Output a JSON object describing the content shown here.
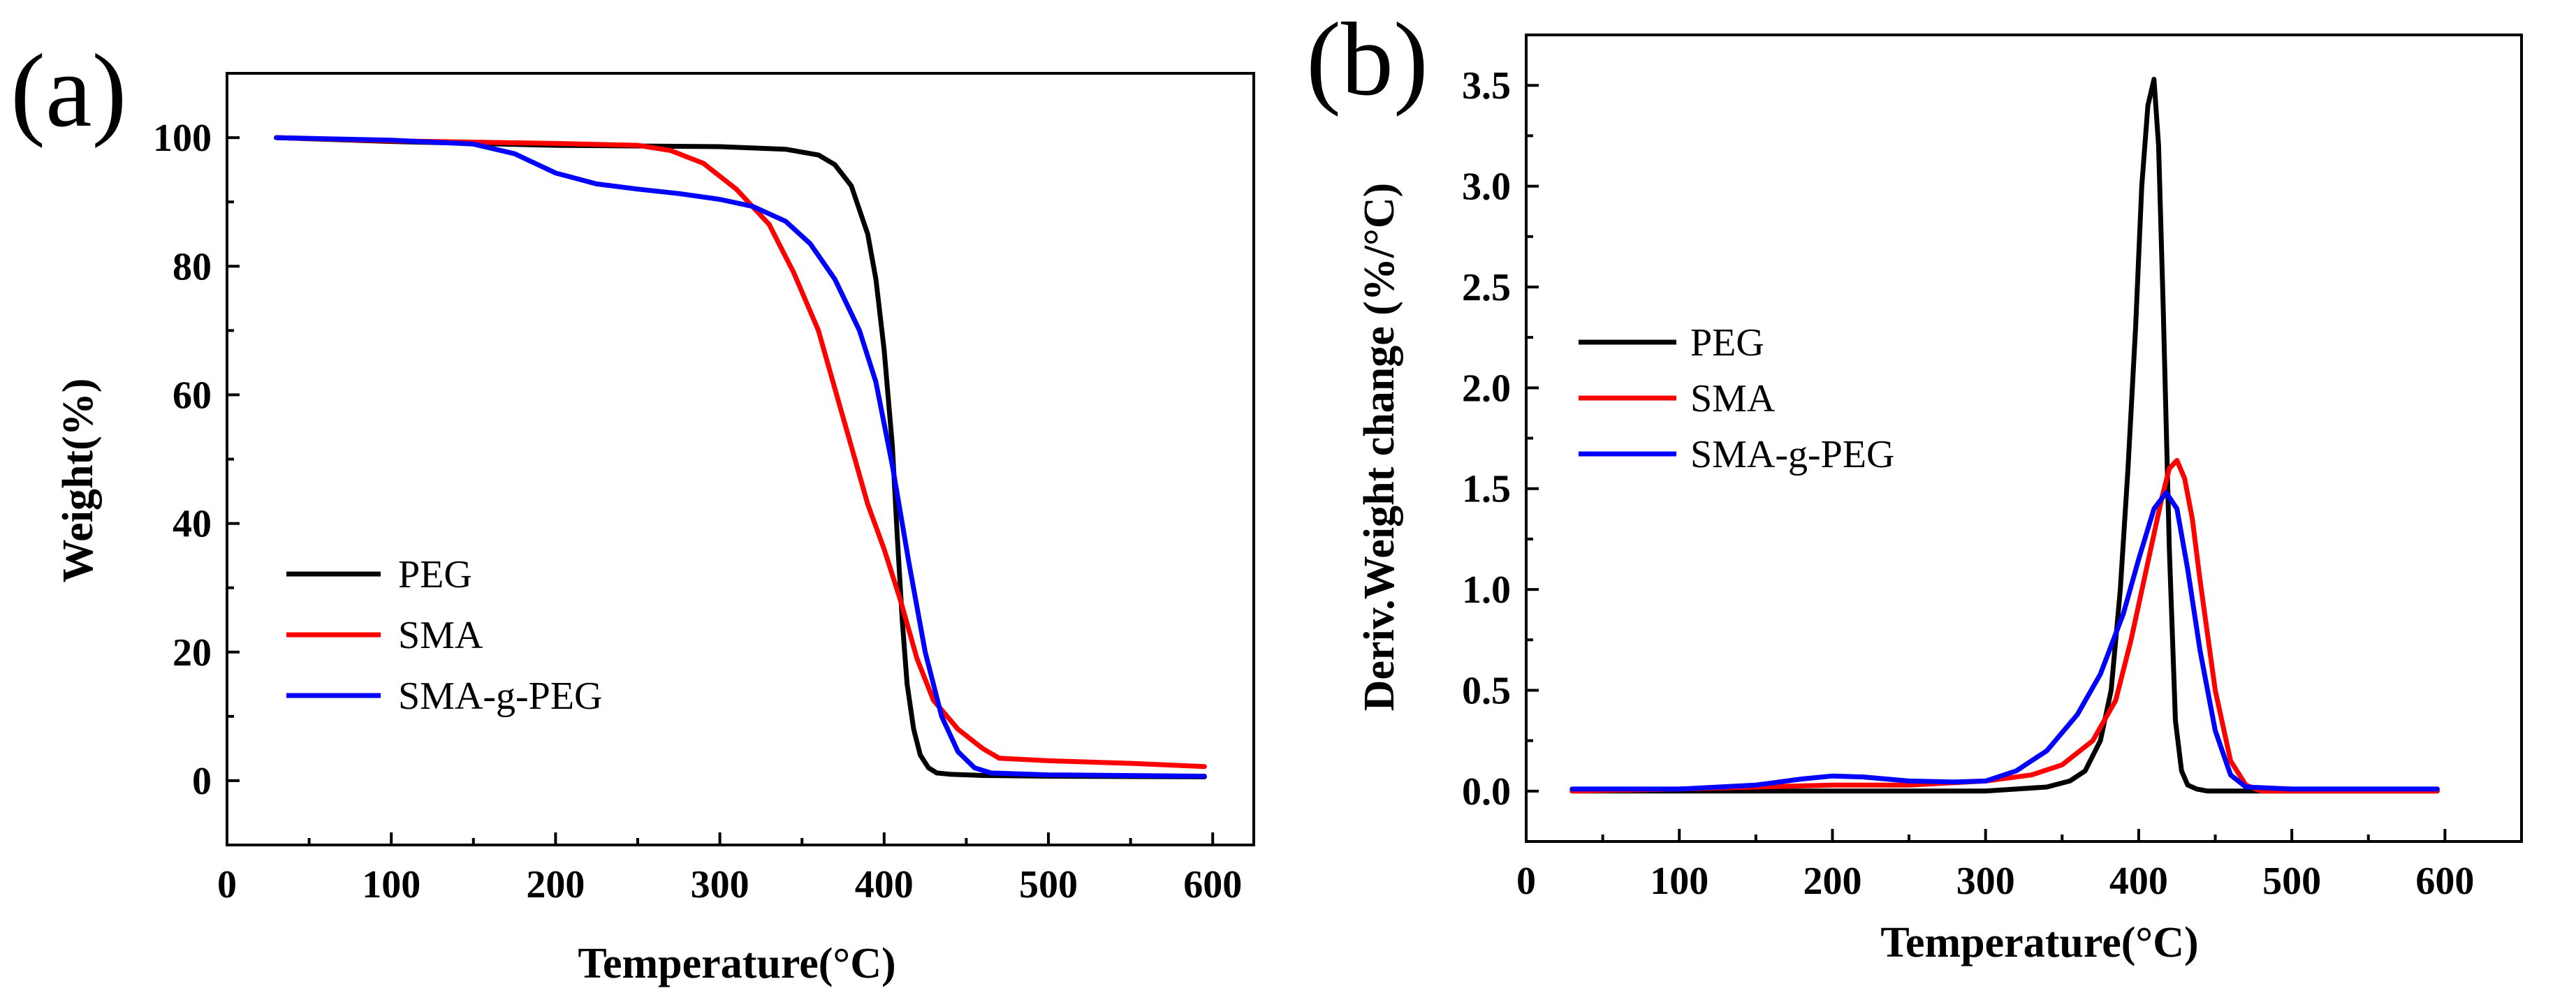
{
  "chart_data": [
    {
      "type": "line",
      "panel_label": "(a)",
      "title": "",
      "xlabel": "Temperature(°C)",
      "ylabel": "Weight(%)",
      "xlim": [
        0,
        625
      ],
      "ylim": [
        -10,
        110
      ],
      "xticks": [
        0,
        100,
        200,
        300,
        400,
        500,
        600
      ],
      "xtick_labels": [
        "0",
        "100",
        "200",
        "300",
        "400",
        "500",
        "600"
      ],
      "yticks": [
        0,
        20,
        40,
        60,
        80,
        100
      ],
      "ytick_labels": [
        "0",
        "20",
        "40",
        "60",
        "80",
        "100"
      ],
      "grid": false,
      "legend_position": "bottom-left",
      "series": [
        {
          "name": "PEG",
          "color": "#000000",
          "x": [
            30,
            100,
            200,
            300,
            340,
            360,
            370,
            380,
            390,
            395,
            400,
            405,
            408,
            411,
            414,
            418,
            422,
            427,
            432,
            440,
            460,
            500,
            595
          ],
          "y": [
            100,
            99.4,
            98.8,
            98.6,
            98.2,
            97.3,
            95.8,
            92.5,
            85,
            78,
            67,
            52,
            38,
            25,
            15,
            8,
            4,
            2,
            1.2,
            1,
            0.8,
            0.7,
            0.6
          ]
        },
        {
          "name": "SMA",
          "color": "#ff0000",
          "x": [
            30,
            100,
            200,
            250,
            270,
            290,
            310,
            330,
            345,
            360,
            370,
            380,
            390,
            400,
            410,
            420,
            430,
            445,
            460,
            470,
            500,
            550,
            595
          ],
          "y": [
            100,
            99.5,
            99.1,
            98.8,
            98,
            96,
            92,
            86.5,
            79,
            70,
            61,
            52,
            43,
            36,
            28,
            19,
            12.5,
            8,
            5,
            3.5,
            3.1,
            2.7,
            2.2
          ]
        },
        {
          "name": "SMA-g-PEG",
          "color": "#0000ff",
          "x": [
            30,
            100,
            150,
            175,
            200,
            225,
            250,
            275,
            300,
            320,
            340,
            355,
            370,
            385,
            395,
            405,
            415,
            425,
            435,
            445,
            455,
            465,
            500,
            595
          ],
          "y": [
            100,
            99.6,
            99,
            97.5,
            94.5,
            92.8,
            92,
            91.3,
            90.4,
            89.3,
            87,
            83.5,
            78,
            70,
            62,
            49,
            34,
            20,
            10,
            4.5,
            2,
            1.2,
            0.9,
            0.7
          ]
        }
      ]
    },
    {
      "type": "line",
      "panel_label": "(b)",
      "title": "",
      "xlabel": "Temperature(°C)",
      "ylabel": "Deriv.Weight change (%/°C)",
      "xlim": [
        0,
        650
      ],
      "ylim": [
        -0.25,
        3.75
      ],
      "xticks": [
        0,
        100,
        200,
        300,
        400,
        500,
        600
      ],
      "xtick_labels": [
        "0",
        "100",
        "200",
        "300",
        "400",
        "500",
        "600"
      ],
      "yticks": [
        0,
        0.5,
        1,
        1.5,
        2,
        2.5,
        3,
        3.5
      ],
      "ytick_labels": [
        "0.0",
        "0.5",
        "1.0",
        "1.5",
        "2.0",
        "2.5",
        "3.0",
        "3.5"
      ],
      "grid": false,
      "legend_position": "middle-left",
      "series": [
        {
          "name": "PEG",
          "color": "#000000",
          "x": [
            30,
            100,
            200,
            300,
            340,
            355,
            365,
            375,
            382,
            388,
            393,
            398,
            402,
            406,
            410,
            413,
            416,
            420,
            424,
            428,
            432,
            438,
            445,
            460,
            595
          ],
          "y": [
            0,
            0,
            0,
            0,
            0.02,
            0.05,
            0.1,
            0.25,
            0.5,
            1.0,
            1.6,
            2.3,
            3.0,
            3.4,
            3.53,
            3.2,
            2.4,
            1.2,
            0.35,
            0.1,
            0.03,
            0.01,
            0,
            0,
            0
          ]
        },
        {
          "name": "SMA",
          "color": "#ff0000",
          "x": [
            30,
            100,
            150,
            200,
            250,
            300,
            330,
            350,
            370,
            385,
            395,
            405,
            415,
            420,
            425,
            430,
            435,
            440,
            450,
            460,
            470,
            480,
            500,
            595
          ],
          "y": [
            0,
            0.01,
            0.02,
            0.03,
            0.03,
            0.05,
            0.08,
            0.13,
            0.25,
            0.45,
            0.75,
            1.1,
            1.45,
            1.6,
            1.64,
            1.55,
            1.35,
            1.05,
            0.5,
            0.15,
            0.03,
            0,
            0,
            0
          ]
        },
        {
          "name": "SMA-g-PEG",
          "color": "#0000ff",
          "x": [
            30,
            100,
            150,
            180,
            200,
            220,
            250,
            280,
            300,
            320,
            340,
            360,
            375,
            390,
            400,
            410,
            418,
            425,
            432,
            440,
            450,
            460,
            470,
            500,
            595
          ],
          "y": [
            0.01,
            0.01,
            0.03,
            0.06,
            0.075,
            0.07,
            0.05,
            0.045,
            0.05,
            0.1,
            0.2,
            0.38,
            0.58,
            0.88,
            1.15,
            1.4,
            1.48,
            1.4,
            1.1,
            0.7,
            0.3,
            0.08,
            0.02,
            0.01,
            0.01
          ]
        }
      ]
    }
  ]
}
